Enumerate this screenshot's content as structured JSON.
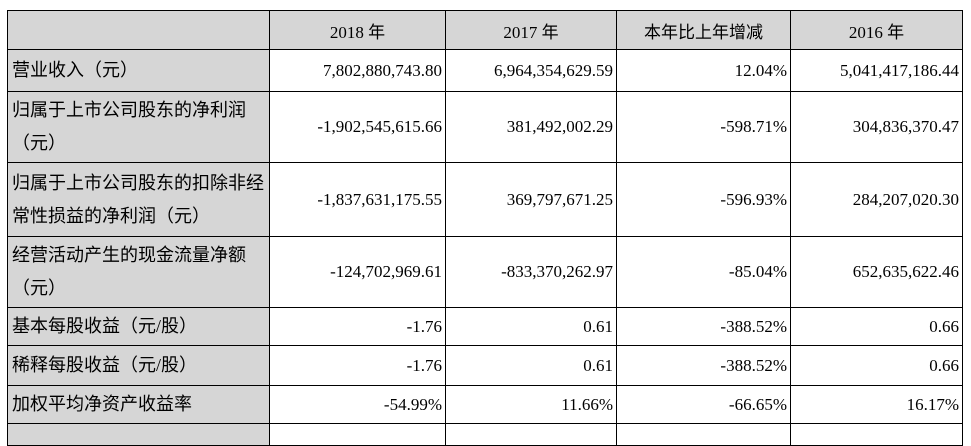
{
  "document": {
    "kind": "financial-summary-table",
    "background": "#ffffff"
  },
  "colors": {
    "header_background": "#d6d6d6",
    "label_column_background": "#d6d6d6",
    "data_cell_background": "#ffffff",
    "border": "#000000",
    "text": "#000000"
  },
  "table": {
    "columns": [
      "",
      "2018 年",
      "2017 年",
      "本年比上年增减",
      "2016 年"
    ],
    "rows": [
      {
        "label_lines": [
          "营业收入（元）"
        ],
        "values": [
          "7,802,880,743.80",
          "6,964,354,629.59",
          "12.04%",
          "5,041,417,186.44"
        ]
      },
      {
        "label_lines": [
          "归属于上市公司股东的净利润",
          "（元）"
        ],
        "values": [
          "-1,902,545,615.66",
          "381,492,002.29",
          "-598.71%",
          "304,836,370.47"
        ]
      },
      {
        "label_lines": [
          "归属于上市公司股东的扣除非经",
          "常性损益的净利润（元）"
        ],
        "values": [
          "-1,837,631,175.55",
          "369,797,671.25",
          "-596.93%",
          "284,207,020.30"
        ]
      },
      {
        "label_lines": [
          "经营活动产生的现金流量净额",
          "（元）"
        ],
        "values": [
          "-124,702,969.61",
          "-833,370,262.97",
          "-85.04%",
          "652,635,622.46"
        ]
      },
      {
        "label_lines": [
          "基本每股收益（元/股）"
        ],
        "values": [
          "-1.76",
          "0.61",
          "-388.52%",
          "0.66"
        ]
      },
      {
        "label_lines": [
          "稀释每股收益（元/股）"
        ],
        "values": [
          "-1.76",
          "0.61",
          "-388.52%",
          "0.66"
        ]
      },
      {
        "label_lines": [
          "加权平均净资产收益率"
        ],
        "values": [
          "-54.99%",
          "11.66%",
          "-66.65%",
          "16.17%"
        ]
      }
    ],
    "partial_next_row": {
      "visible": true,
      "label": "",
      "values": [
        "",
        "",
        "",
        ""
      ]
    }
  }
}
